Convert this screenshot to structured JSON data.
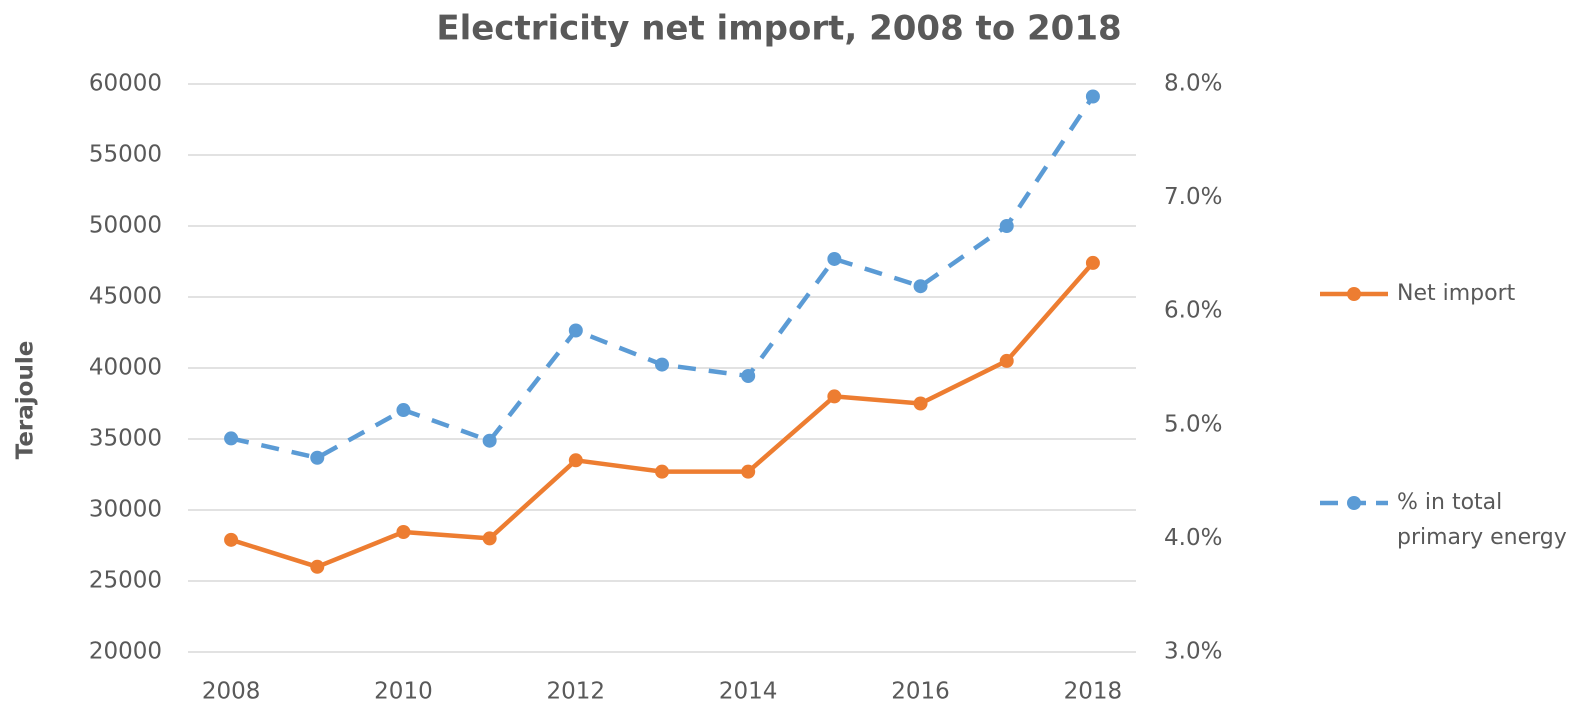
{
  "chart_data": {
    "type": "line",
    "title": "Electricity net import, 2008 to 2018",
    "y_label": "Terajoule",
    "x": [
      2008,
      2009,
      2010,
      2011,
      2012,
      2013,
      2014,
      2015,
      2016,
      2017,
      2018
    ],
    "xlim": [
      2007.5,
      2018.5
    ],
    "xticks": [
      2008,
      2010,
      2012,
      2014,
      2016,
      2018
    ],
    "ylim": [
      20000,
      60000
    ],
    "yticks": [
      20000,
      25000,
      30000,
      35000,
      40000,
      45000,
      50000,
      55000,
      60000
    ],
    "y2lim": [
      3,
      8
    ],
    "y2ticks": [
      {
        "value": 3,
        "label": "3.0%"
      },
      {
        "value": 4,
        "label": "4.0%"
      },
      {
        "value": 5,
        "label": "5.0%"
      },
      {
        "value": 6,
        "label": "6.0%"
      },
      {
        "value": 7,
        "label": "7.0%"
      },
      {
        "value": 8,
        "label": "8.0%"
      }
    ],
    "grid": true,
    "legend": "right",
    "series": [
      {
        "name": "Net import",
        "color": "#ED7D31",
        "dash": "solid",
        "values": [
          27900,
          26000,
          28450,
          28000,
          33500,
          32700,
          32700,
          38000,
          37500,
          40500,
          47400
        ]
      },
      {
        "name": "% in total primary energy",
        "color": "#5B9BD5",
        "dash": "dashed",
        "axis": "y2",
        "values": [
          4.88,
          4.71,
          5.13,
          4.86,
          5.83,
          5.53,
          5.43,
          6.46,
          6.22,
          6.75,
          7.89
        ]
      }
    ]
  }
}
